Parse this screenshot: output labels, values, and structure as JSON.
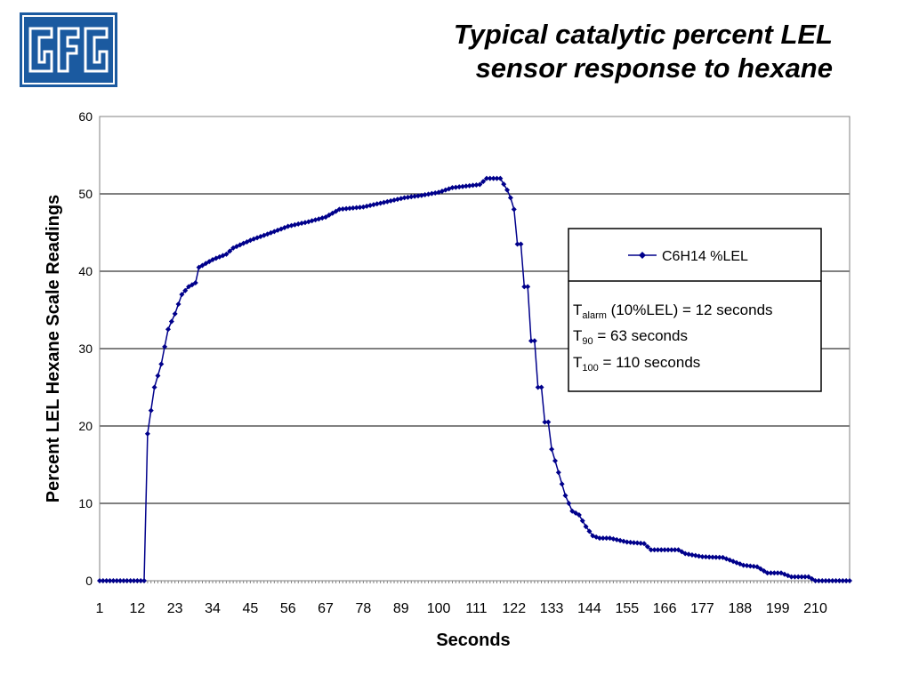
{
  "page": {
    "title_line1": "Typical catalytic percent LEL",
    "title_line2": "sensor response to hexane",
    "logo": {
      "text": "GfG",
      "color": "#1b5aa0"
    }
  },
  "chart_data": {
    "type": "line",
    "title": "Typical catalytic percent LEL sensor response to hexane",
    "xlabel": "Seconds",
    "ylabel": "Percent LEL Hexane Scale Readings",
    "xlim": [
      1,
      220
    ],
    "ylim": [
      0,
      60
    ],
    "x_tick_labels": [
      1,
      12,
      23,
      34,
      45,
      56,
      67,
      78,
      89,
      100,
      111,
      122,
      133,
      144,
      155,
      166,
      177,
      188,
      199,
      210
    ],
    "y_ticks": [
      0,
      10,
      20,
      30,
      40,
      50,
      60
    ],
    "grid": "horizontal",
    "legend_position": "right",
    "line_color": "#00008b",
    "series_keypoints": [
      {
        "x": 1,
        "y": 0
      },
      {
        "x": 14,
        "y": 0
      },
      {
        "x": 15,
        "y": 19
      },
      {
        "x": 17,
        "y": 25
      },
      {
        "x": 19,
        "y": 28
      },
      {
        "x": 21,
        "y": 32.5
      },
      {
        "x": 23,
        "y": 34.5
      },
      {
        "x": 25,
        "y": 37
      },
      {
        "x": 27,
        "y": 38
      },
      {
        "x": 29,
        "y": 38.5
      },
      {
        "x": 30,
        "y": 40.5
      },
      {
        "x": 34,
        "y": 41.5
      },
      {
        "x": 38,
        "y": 42.2
      },
      {
        "x": 40,
        "y": 43
      },
      {
        "x": 45,
        "y": 44
      },
      {
        "x": 50,
        "y": 44.8
      },
      {
        "x": 56,
        "y": 45.8
      },
      {
        "x": 62,
        "y": 46.4
      },
      {
        "x": 67,
        "y": 47
      },
      {
        "x": 71,
        "y": 48
      },
      {
        "x": 78,
        "y": 48.3
      },
      {
        "x": 85,
        "y": 49
      },
      {
        "x": 90,
        "y": 49.5
      },
      {
        "x": 95,
        "y": 49.8
      },
      {
        "x": 100,
        "y": 50.2
      },
      {
        "x": 104,
        "y": 50.8
      },
      {
        "x": 108,
        "y": 51
      },
      {
        "x": 112,
        "y": 51.2
      },
      {
        "x": 114,
        "y": 52
      },
      {
        "x": 118,
        "y": 52
      },
      {
        "x": 120,
        "y": 50.5
      },
      {
        "x": 121,
        "y": 49.5
      },
      {
        "x": 122,
        "y": 48
      },
      {
        "x": 123,
        "y": 43.5
      },
      {
        "x": 124,
        "y": 43.5
      },
      {
        "x": 125,
        "y": 38
      },
      {
        "x": 126,
        "y": 38
      },
      {
        "x": 127,
        "y": 31
      },
      {
        "x": 128,
        "y": 31
      },
      {
        "x": 129,
        "y": 25
      },
      {
        "x": 130,
        "y": 25
      },
      {
        "x": 131,
        "y": 20.5
      },
      {
        "x": 132,
        "y": 20.5
      },
      {
        "x": 133,
        "y": 17
      },
      {
        "x": 135,
        "y": 14
      },
      {
        "x": 137,
        "y": 11
      },
      {
        "x": 139,
        "y": 9
      },
      {
        "x": 141,
        "y": 8.5
      },
      {
        "x": 143,
        "y": 7
      },
      {
        "x": 145,
        "y": 5.8
      },
      {
        "x": 147,
        "y": 5.5
      },
      {
        "x": 150,
        "y": 5.5
      },
      {
        "x": 155,
        "y": 5
      },
      {
        "x": 160,
        "y": 4.8
      },
      {
        "x": 162,
        "y": 4
      },
      {
        "x": 170,
        "y": 4
      },
      {
        "x": 172,
        "y": 3.5
      },
      {
        "x": 177,
        "y": 3.1
      },
      {
        "x": 183,
        "y": 3
      },
      {
        "x": 186,
        "y": 2.5
      },
      {
        "x": 189,
        "y": 2
      },
      {
        "x": 193,
        "y": 1.8
      },
      {
        "x": 196,
        "y": 1
      },
      {
        "x": 200,
        "y": 1
      },
      {
        "x": 203,
        "y": 0.5
      },
      {
        "x": 208,
        "y": 0.5
      },
      {
        "x": 210,
        "y": 0
      },
      {
        "x": 220,
        "y": 0
      }
    ],
    "series": [
      {
        "name": "C6H14 %LEL"
      }
    ],
    "annotation": {
      "line1_main": "T",
      "line1_sub": "alarm",
      "line1_rest": " (10%LEL) = 12 seconds",
      "line2_main": "T",
      "line2_sub": "90",
      "line2_rest": " = 63 seconds",
      "line3_main": "T",
      "line3_sub": "100",
      "line3_rest": " = 110 seconds"
    }
  }
}
